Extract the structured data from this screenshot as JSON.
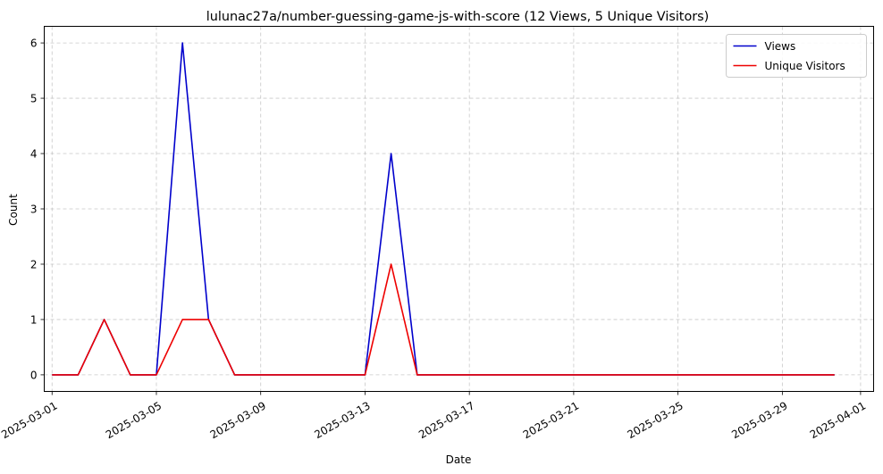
{
  "chart_data": {
    "type": "line",
    "title": "lulunac27a/number-guessing-game-js-with-score (12 Views, 5 Unique Visitors)",
    "xlabel": "Date",
    "ylabel": "Count",
    "x": [
      "2025-03-01",
      "2025-03-02",
      "2025-03-03",
      "2025-03-04",
      "2025-03-05",
      "2025-03-06",
      "2025-03-07",
      "2025-03-08",
      "2025-03-09",
      "2025-03-10",
      "2025-03-11",
      "2025-03-12",
      "2025-03-13",
      "2025-03-14",
      "2025-03-15",
      "2025-03-16",
      "2025-03-17",
      "2025-03-18",
      "2025-03-19",
      "2025-03-20",
      "2025-03-21",
      "2025-03-22",
      "2025-03-23",
      "2025-03-24",
      "2025-03-25",
      "2025-03-26",
      "2025-03-27",
      "2025-03-28",
      "2025-03-29",
      "2025-03-30",
      "2025-03-31"
    ],
    "series": [
      {
        "name": "Views",
        "color": "#0000cc",
        "values": [
          0,
          0,
          1,
          0,
          0,
          6,
          1,
          0,
          0,
          0,
          0,
          0,
          0,
          4,
          0,
          0,
          0,
          0,
          0,
          0,
          0,
          0,
          0,
          0,
          0,
          0,
          0,
          0,
          0,
          0,
          0
        ]
      },
      {
        "name": "Unique Visitors",
        "color": "#ee0000",
        "values": [
          0,
          0,
          1,
          0,
          0,
          1,
          1,
          0,
          0,
          0,
          0,
          0,
          0,
          2,
          0,
          0,
          0,
          0,
          0,
          0,
          0,
          0,
          0,
          0,
          0,
          0,
          0,
          0,
          0,
          0,
          0
        ]
      }
    ],
    "xticks": [
      "2025-03-01",
      "2025-03-05",
      "2025-03-09",
      "2025-03-13",
      "2025-03-17",
      "2025-03-21",
      "2025-03-25",
      "2025-03-29",
      "2025-04-01"
    ],
    "yticks": [
      0,
      1,
      2,
      3,
      4,
      5,
      6
    ],
    "xlim": [
      "2025-02-28",
      "2025-04-01"
    ],
    "ylim": [
      -0.3,
      6.3
    ],
    "grid": true,
    "legend_position": "top-right"
  }
}
